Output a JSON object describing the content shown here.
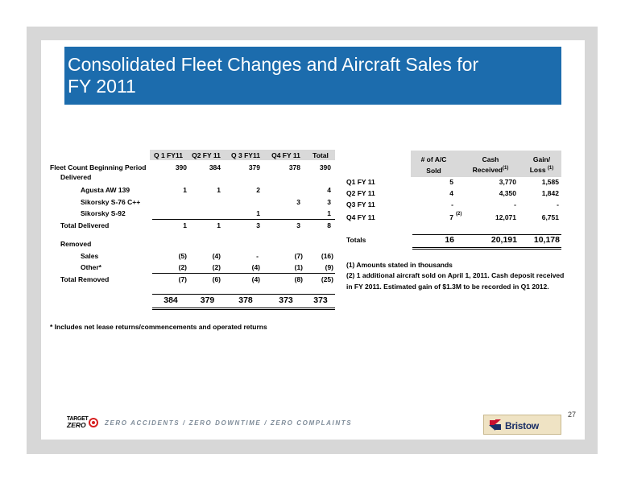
{
  "title_line1": "Consolidated Fleet Changes and Aircraft Sales for",
  "title_line2": "FY 2011",
  "fleet": {
    "columns": [
      "Q 1 FY11",
      "Q2 FY 11",
      "Q 3 FY11",
      "Q4 FY 11",
      "Total"
    ],
    "rows": [
      {
        "label": "Fleet Count Beginning Period",
        "values": [
          "390",
          "384",
          "379",
          "378",
          "390"
        ]
      },
      {
        "label": "Delivered",
        "values": [
          "",
          "",
          "",
          "",
          ""
        ]
      },
      {
        "label": "Agusta AW 139",
        "values": [
          "1",
          "1",
          "2",
          "",
          "4"
        ]
      },
      {
        "label": "Sikorsky S-76 C++",
        "values": [
          "",
          "",
          "",
          "3",
          "3"
        ]
      },
      {
        "label": "Sikorsky S-92",
        "values": [
          "",
          "",
          "1",
          "",
          "1"
        ]
      },
      {
        "label": "Total Delivered",
        "values": [
          "1",
          "1",
          "3",
          "3",
          "8"
        ]
      },
      {
        "label": "Removed",
        "values": [
          "",
          "",
          "",
          "",
          ""
        ]
      },
      {
        "label": "Sales",
        "values": [
          "(5)",
          "(4)",
          "-",
          "(7)",
          "(16)"
        ]
      },
      {
        "label": "Other*",
        "values": [
          "(2)",
          "(2)",
          "(4)",
          "(1)",
          "(9)"
        ]
      },
      {
        "label": "Total Removed",
        "values": [
          "(7)",
          "(6)",
          "(4)",
          "(8)",
          "(25)"
        ]
      }
    ],
    "ending": [
      "384",
      "379",
      "378",
      "373",
      "373"
    ],
    "footnote": "* Includes net lease returns/commencements and operated returns"
  },
  "sales": {
    "col1_line1": "# of A/C",
    "col1_line2": "Sold",
    "col2_line1": "Cash",
    "col2_line2": "Received",
    "col2_sup": "(1)",
    "col3_line1": "Gain/",
    "col3_line2": "Loss",
    "col3_sup": "(1)",
    "rows": [
      {
        "label": "Q1 FY 11",
        "count": "5",
        "cash": "3,770",
        "gain": "1,585"
      },
      {
        "label": "Q2 FY 11",
        "count": "4",
        "cash": "4,350",
        "gain": "1,842"
      },
      {
        "label": "Q3 FY 11",
        "count": "-",
        "cash": "-",
        "gain": "-"
      },
      {
        "label": "Q4 FY 11",
        "count": "7",
        "count_sup": "(2)",
        "cash": "12,071",
        "gain": "6,751"
      }
    ],
    "totals": {
      "label": "Totals",
      "count": "16",
      "cash": "20,191",
      "gain": "10,178"
    },
    "note1": "(1) Amounts stated in thousands",
    "note2_line1": "(2) 1 additional aircraft sold on April 1, 2011. Cash deposit received",
    "note2_line2": "in FY 2011.   Estimated gain of $1.3M to be recorded in Q1 2012."
  },
  "footer": {
    "logo_line1": "TARGET",
    "logo_line2": "ZERO",
    "motto": "ZERO ACCIDENTS / ZERO DOWNTIME / ZERO COMPLAINTS",
    "brand": "Bristow",
    "page_number": "27"
  }
}
